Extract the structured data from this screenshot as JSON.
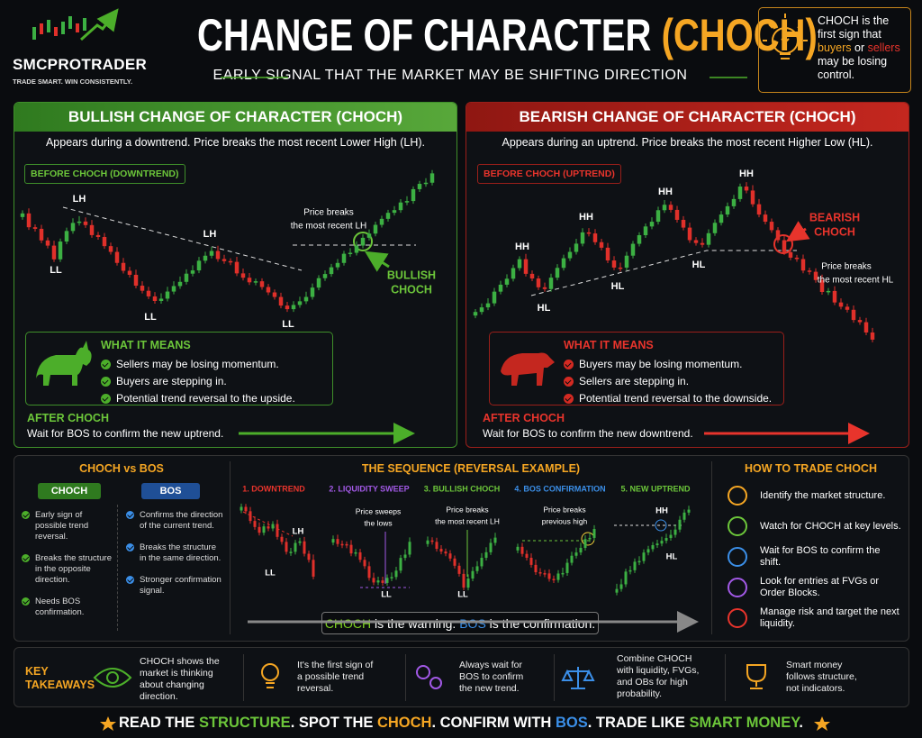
{
  "header": {
    "brand": "SMCPROTRADER",
    "tagline": "TRADE SMART. WIN CONSISTENTLY.",
    "title": "CHANGE OF CHARACTER",
    "title_highlight": "(CHOCH)",
    "subtitle": "EARLY SIGNAL THAT THE MARKET MAY BE SHIFTING DIRECTION",
    "note": [
      {
        "text": "CHOCH is the first sign that "
      },
      {
        "text": "buyers",
        "color": "#f5a623"
      },
      {
        "text": " or "
      },
      {
        "text": "sellers",
        "color": "#e8342c"
      },
      {
        "text": " may be losing control."
      }
    ]
  },
  "bullish": {
    "title": "BULLISH CHANGE OF CHARACTER (CHOCH)",
    "description": "Appears during a downtrend. Price breaks the most recent Lower High (LH).",
    "chart_label": "BEFORE CHOCH (DOWNTREND)",
    "annotations": [
      "LH",
      "LL",
      "LH",
      "LL",
      "LL"
    ],
    "callout": [
      "Price breaks",
      "the most recent LH"
    ],
    "signal": [
      "BULLISH",
      "CHOCH"
    ],
    "meaning_title": "WHAT IT MEANS",
    "meaning": [
      "Sellers may be losing momentum.",
      "Buyers are stepping in.",
      "Potential trend reversal to the upside."
    ],
    "after_title": "AFTER CHOCH",
    "after_text": "Wait for BOS to confirm the new uptrend."
  },
  "bearish": {
    "title": "BEARISH CHANGE OF CHARACTER (CHOCH)",
    "description": "Appears during an uptrend. Price breaks the most recent Higher Low (HL).",
    "chart_label": "BEFORE CHOCH (UPTREND)",
    "annotations": [
      "HH",
      "HL",
      "HH",
      "HL",
      "HH",
      "HL",
      "HH"
    ],
    "callout": [
      "Price breaks",
      "the most recent HL"
    ],
    "signal": [
      "BEARISH",
      "CHOCH"
    ],
    "meaning_title": "WHAT IT MEANS",
    "meaning": [
      "Buyers may be losing momentum.",
      "Sellers are stepping in.",
      "Potential trend reversal to the downside."
    ],
    "after_title": "AFTER CHOCH",
    "after_text": "Wait for BOS to confirm the new downtrend."
  },
  "comparison": {
    "title": "CHOCH vs BOS",
    "choch": {
      "name": "CHOCH",
      "points": [
        "Early sign of possible trend reversal.",
        "Breaks the structure in the opposite direction.",
        "Needs BOS confirmation."
      ]
    },
    "bos": {
      "name": "BOS",
      "points": [
        "Confirms the direction of the current trend.",
        "Breaks the structure in the same direction.",
        "Stronger confirmation signal."
      ]
    }
  },
  "sequence": {
    "title": "THE SEQUENCE (REVERSAL EXAMPLE)",
    "steps": [
      {
        "label": "1. DOWNTREND",
        "color": "#e8342c",
        "annotations": [
          "LH",
          "LL"
        ]
      },
      {
        "label": "2. LIQUIDITY SWEEP",
        "color": "#a259e6",
        "annotations": [
          "Price sweeps",
          "the lows",
          "LL"
        ]
      },
      {
        "label": "3. BULLISH CHOCH",
        "color": "#6cc63a",
        "annotations": [
          "Price breaks",
          "the most recent LH",
          "LL"
        ]
      },
      {
        "label": "4. BOS CONFIRMATION",
        "color": "#3b8fe8",
        "annotations": [
          "Price breaks",
          "previous high"
        ]
      },
      {
        "label": "5. NEW UPTREND",
        "color": "#6cc63a",
        "annotations": [
          "HH",
          "HL"
        ]
      }
    ],
    "summary": [
      {
        "text": "CHOCH",
        "color": "#7ed321"
      },
      {
        "text": " is the warning. "
      },
      {
        "text": "BOS",
        "color": "#3b8fe8"
      },
      {
        "text": " is the confirmation."
      }
    ]
  },
  "how_to_trade": {
    "title": "HOW TO TRADE CHOCH",
    "steps": [
      "Identify the market structure.",
      "Watch for CHOCH at key levels.",
      "Wait for BOS to confirm the shift.",
      "Look for entries at FVGs or Order Blocks.",
      "Manage risk and target the next liquidity."
    ]
  },
  "key_takeaways": {
    "title": "KEY TAKEAWAYS",
    "items": [
      "CHOCH shows the market is thinking about changing direction.",
      "It's the first sign of a possible trend reversal.",
      "Always wait for BOS to confirm the new trend.",
      "Combine CHOCH with liquidity, FVGs, and OBs for high probability.",
      "Smart money follows structure, not indicators."
    ]
  },
  "footer": [
    {
      "text": "READ THE "
    },
    {
      "text": "STRUCTURE",
      "color": "#6cc63a"
    },
    {
      "text": ". SPOT THE "
    },
    {
      "text": "CHOCH",
      "color": "#f5a623"
    },
    {
      "text": ". CONFIRM WITH "
    },
    {
      "text": "BOS",
      "color": "#3b8fe8"
    },
    {
      "text": ". TRADE LIKE "
    },
    {
      "text": "SMART MONEY",
      "color": "#6cc63a"
    },
    {
      "text": "."
    }
  ]
}
